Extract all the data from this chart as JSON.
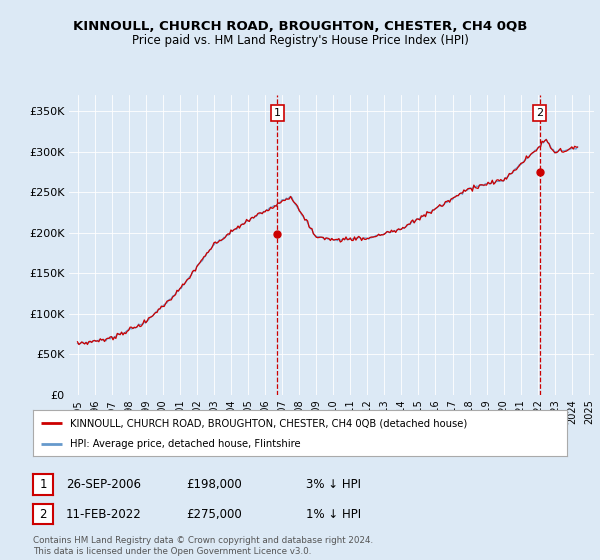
{
  "title": "KINNOULL, CHURCH ROAD, BROUGHTON, CHESTER, CH4 0QB",
  "subtitle": "Price paid vs. HM Land Registry's House Price Index (HPI)",
  "legend_line1": "KINNOULL, CHURCH ROAD, BROUGHTON, CHESTER, CH4 0QB (detached house)",
  "legend_line2": "HPI: Average price, detached house, Flintshire",
  "annotation1_date": "26-SEP-2006",
  "annotation1_price": "£198,000",
  "annotation1_hpi": "3% ↓ HPI",
  "annotation2_date": "11-FEB-2022",
  "annotation2_price": "£275,000",
  "annotation2_hpi": "1% ↓ HPI",
  "footnote": "Contains HM Land Registry data © Crown copyright and database right 2024.\nThis data is licensed under the Open Government Licence v3.0.",
  "ylim": [
    0,
    370000
  ],
  "yticks": [
    0,
    50000,
    100000,
    150000,
    200000,
    250000,
    300000,
    350000
  ],
  "ytick_labels": [
    "£0",
    "£50K",
    "£100K",
    "£150K",
    "£200K",
    "£250K",
    "£300K",
    "£350K"
  ],
  "background_color": "#dce9f5",
  "plot_bg_color": "#dce9f5",
  "red_color": "#cc0000",
  "blue_color": "#6699cc",
  "marker1_x": 2006.73,
  "marker1_y": 198000,
  "marker2_x": 2022.11,
  "marker2_y": 275000,
  "xlim_min": 1994.5,
  "xlim_max": 2025.3
}
